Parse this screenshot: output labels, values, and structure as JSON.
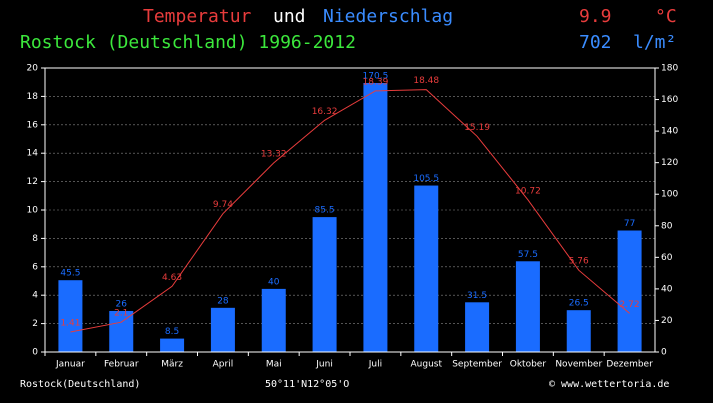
{
  "chart_data": {
    "type": "bar",
    "title_connector": "und",
    "subtitle": "Rostock (Deutschland) 1996-2012",
    "mean_temperature": 9.9,
    "temperature_unit": "°C",
    "total_precipitation": 702,
    "precipitation_unit": "l/m²",
    "categories": [
      "Januar",
      "Februar",
      "März",
      "April",
      "Mai",
      "Juni",
      "Juli",
      "August",
      "September",
      "Oktober",
      "November",
      "Dezember"
    ],
    "series": [
      {
        "name": "Temperatur",
        "type": "line",
        "color": "#e83c3c",
        "values": [
          1.41,
          2.1,
          4.63,
          9.74,
          13.32,
          16.32,
          18.39,
          18.48,
          15.19,
          10.72,
          5.76,
          2.72
        ]
      },
      {
        "name": "Niederschlag",
        "type": "bar",
        "axis": "y2",
        "color": "#1a6cff",
        "values": [
          45.5,
          26,
          8.5,
          28,
          40,
          85.5,
          170.5,
          105.5,
          31.5,
          57.5,
          26.5,
          77
        ]
      }
    ],
    "ylim": [
      0,
      20
    ],
    "yticks": [
      0,
      2,
      4,
      6,
      8,
      10,
      12,
      14,
      16,
      18,
      20
    ],
    "y2lim": [
      0,
      180
    ],
    "y2ticks": [
      0,
      20,
      40,
      60,
      80,
      100,
      120,
      140,
      160,
      180
    ],
    "grid": true,
    "footer_left": "Rostock(Deutschland)",
    "footer_center": "50°11'N12°05'O",
    "footer_right": "© www.wettertoria.de"
  }
}
